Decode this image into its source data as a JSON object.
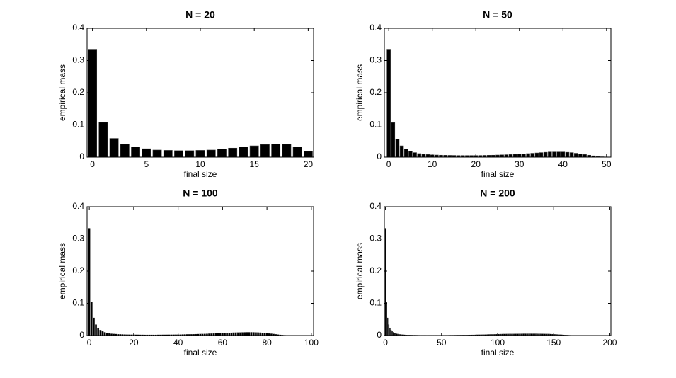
{
  "chart_data": [
    {
      "type": "bar",
      "title": "N = 20",
      "x_label": "final size",
      "y_label": "empirical mass",
      "color": "#000000",
      "categories": [
        0,
        1,
        2,
        3,
        4,
        5,
        6,
        7,
        8,
        9,
        10,
        11,
        12,
        13,
        14,
        15,
        16,
        17,
        18,
        19,
        20
      ],
      "values": [
        0.335,
        0.108,
        0.058,
        0.04,
        0.032,
        0.026,
        0.022,
        0.021,
        0.02,
        0.02,
        0.021,
        0.022,
        0.025,
        0.028,
        0.032,
        0.035,
        0.039,
        0.041,
        0.04,
        0.032,
        0.018
      ],
      "xlim": [
        -0.5,
        20.5
      ],
      "xticks": [
        0,
        5,
        10,
        15,
        20
      ],
      "ylim": [
        0,
        0.4
      ],
      "yticks": [
        0,
        0.1,
        0.2,
        0.3,
        0.4
      ]
    },
    {
      "type": "bar",
      "title": "N = 50",
      "x_label": "final size",
      "y_label": "empirical mass",
      "color": "#000000",
      "categories": [
        0,
        1,
        2,
        3,
        4,
        5,
        6,
        7,
        8,
        9,
        10,
        11,
        12,
        13,
        14,
        15,
        16,
        17,
        18,
        19,
        20,
        21,
        22,
        23,
        24,
        25,
        26,
        27,
        28,
        29,
        30,
        31,
        32,
        33,
        34,
        35,
        36,
        37,
        38,
        39,
        40,
        41,
        42,
        43,
        44,
        45,
        46,
        47,
        48,
        49,
        50
      ],
      "values": [
        0.335,
        0.107,
        0.056,
        0.035,
        0.025,
        0.018,
        0.014,
        0.011,
        0.009,
        0.008,
        0.007,
        0.0065,
        0.006,
        0.0058,
        0.0055,
        0.0053,
        0.005,
        0.005,
        0.005,
        0.005,
        0.005,
        0.0052,
        0.0055,
        0.0058,
        0.006,
        0.0065,
        0.007,
        0.0075,
        0.008,
        0.009,
        0.0095,
        0.01,
        0.011,
        0.012,
        0.013,
        0.014,
        0.015,
        0.016,
        0.016,
        0.016,
        0.016,
        0.015,
        0.014,
        0.012,
        0.01,
        0.008,
        0.006,
        0.004,
        0.002,
        0.001,
        0.0005
      ],
      "xlim": [
        -1,
        51
      ],
      "xticks": [
        0,
        10,
        20,
        30,
        40,
        50
      ],
      "ylim": [
        0,
        0.4
      ],
      "yticks": [
        0,
        0.1,
        0.2,
        0.3,
        0.4
      ]
    },
    {
      "type": "bar",
      "title": "N = 100",
      "x_label": "final size",
      "y_label": "empirical mass",
      "color": "#000000",
      "categories": [
        0,
        1,
        2,
        3,
        4,
        5,
        6,
        7,
        8,
        9,
        10,
        11,
        12,
        13,
        14,
        15,
        16,
        17,
        18,
        19,
        20,
        21,
        22,
        23,
        24,
        25,
        26,
        27,
        28,
        29,
        30,
        31,
        32,
        33,
        34,
        35,
        36,
        37,
        38,
        39,
        40,
        41,
        42,
        43,
        44,
        45,
        46,
        47,
        48,
        49,
        50,
        51,
        52,
        53,
        54,
        55,
        56,
        57,
        58,
        59,
        60,
        61,
        62,
        63,
        64,
        65,
        66,
        67,
        68,
        69,
        70,
        71,
        72,
        73,
        74,
        75,
        76,
        77,
        78,
        79,
        80,
        81,
        82,
        83,
        84,
        85,
        86,
        87,
        88,
        89,
        90,
        91,
        92,
        93,
        94,
        95,
        96,
        97,
        98,
        99,
        100
      ],
      "values": [
        0.333,
        0.105,
        0.055,
        0.034,
        0.024,
        0.017,
        0.013,
        0.01,
        0.008,
        0.0065,
        0.0055,
        0.005,
        0.0045,
        0.004,
        0.0037,
        0.0034,
        0.0032,
        0.003,
        0.0028,
        0.0027,
        0.0026,
        0.0025,
        0.0024,
        0.0023,
        0.0023,
        0.0022,
        0.0022,
        0.0022,
        0.0022,
        0.0022,
        0.0022,
        0.0023,
        0.0023,
        0.0024,
        0.0024,
        0.0025,
        0.0026,
        0.0027,
        0.0028,
        0.0029,
        0.003,
        0.0031,
        0.0033,
        0.0034,
        0.0036,
        0.0037,
        0.0039,
        0.0041,
        0.0043,
        0.0045,
        0.0047,
        0.0049,
        0.0052,
        0.0054,
        0.0057,
        0.006,
        0.0063,
        0.0066,
        0.0069,
        0.0072,
        0.0075,
        0.0078,
        0.0081,
        0.0084,
        0.0087,
        0.009,
        0.0092,
        0.0094,
        0.0096,
        0.0098,
        0.0099,
        0.01,
        0.01,
        0.01,
        0.0099,
        0.0097,
        0.0094,
        0.009,
        0.0085,
        0.0079,
        0.0072,
        0.0064,
        0.0056,
        0.0047,
        0.0038,
        0.003,
        0.0022,
        0.0016,
        0.0011,
        0.0007,
        0.0004,
        0.0002,
        0.0001,
        0.0001,
        0,
        0,
        0,
        0,
        0,
        0,
        0
      ],
      "xlim": [
        -1,
        101
      ],
      "xticks": [
        0,
        20,
        40,
        60,
        80,
        100
      ],
      "ylim": [
        0,
        0.4
      ],
      "yticks": [
        0,
        0.1,
        0.2,
        0.3,
        0.4
      ]
    },
    {
      "type": "bar",
      "title": "N = 200",
      "x_label": "final size",
      "y_label": "empirical mass",
      "color": "#000000",
      "categories": [
        0,
        1,
        2,
        3,
        4,
        5,
        6,
        7,
        8,
        9,
        10,
        11,
        12,
        13,
        14,
        15,
        16,
        17,
        18,
        19,
        20,
        21,
        22,
        23,
        24,
        25,
        26,
        27,
        28,
        29,
        30,
        31,
        32,
        33,
        34,
        35,
        36,
        37,
        38,
        39,
        40,
        41,
        42,
        43,
        44,
        45,
        46,
        47,
        48,
        49,
        50,
        51,
        52,
        53,
        54,
        55,
        56,
        57,
        58,
        59,
        60,
        61,
        62,
        63,
        64,
        65,
        66,
        67,
        68,
        69,
        70,
        71,
        72,
        73,
        74,
        75,
        76,
        77,
        78,
        79,
        80,
        81,
        82,
        83,
        84,
        85,
        86,
        87,
        88,
        89,
        90,
        91,
        92,
        93,
        94,
        95,
        96,
        97,
        98,
        99,
        100,
        101,
        102,
        103,
        104,
        105,
        106,
        107,
        108,
        109,
        110,
        111,
        112,
        113,
        114,
        115,
        116,
        117,
        118,
        119,
        120,
        121,
        122,
        123,
        124,
        125,
        126,
        127,
        128,
        129,
        130,
        131,
        132,
        133,
        134,
        135,
        136,
        137,
        138,
        139,
        140,
        141,
        142,
        143,
        144,
        145,
        146,
        147,
        148,
        149,
        150,
        151,
        152,
        153,
        154,
        155,
        156,
        157,
        158,
        159,
        160,
        161,
        162,
        163,
        164,
        165,
        166,
        167,
        168,
        169,
        170,
        171,
        172,
        173,
        174,
        175,
        176,
        177,
        178,
        179,
        180,
        181,
        182,
        183,
        184,
        185,
        186,
        187,
        188,
        189,
        190,
        191,
        192,
        193,
        194,
        195,
        196,
        197,
        198,
        199,
        200
      ],
      "values": [
        0.333,
        0.105,
        0.055,
        0.034,
        0.024,
        0.017,
        0.013,
        0.01,
        0.008,
        0.0065,
        0.0055,
        0.0047,
        0.0041,
        0.0036,
        0.0032,
        0.0029,
        0.0026,
        0.0023,
        0.0021,
        0.0019,
        0.0018,
        0.0017,
        0.0016,
        0.0015,
        0.0014,
        0.0013,
        0.0013,
        0.0012,
        0.0012,
        0.0011,
        0.0011,
        0.0011,
        0.001,
        0.001,
        0.001,
        0.001,
        0.001,
        0.001,
        0.001,
        0.001,
        0.001,
        0.001,
        0.001,
        0.001,
        0.001,
        0.001,
        0.001,
        0.001,
        0.001,
        0.001,
        0.001,
        0.001,
        0.001,
        0.001,
        0.0011,
        0.0011,
        0.0011,
        0.0011,
        0.0012,
        0.0012,
        0.0012,
        0.0013,
        0.0013,
        0.0013,
        0.0014,
        0.0014,
        0.0015,
        0.0015,
        0.0016,
        0.0016,
        0.0017,
        0.0017,
        0.0018,
        0.0018,
        0.0019,
        0.002,
        0.002,
        0.0021,
        0.0022,
        0.0022,
        0.0023,
        0.0024,
        0.0025,
        0.0026,
        0.0026,
        0.0027,
        0.0028,
        0.0029,
        0.003,
        0.0031,
        0.0032,
        0.0033,
        0.0034,
        0.0035,
        0.0036,
        0.0037,
        0.0038,
        0.0039,
        0.004,
        0.0041,
        0.0042,
        0.0043,
        0.0044,
        0.0045,
        0.0046,
        0.0046,
        0.0047,
        0.0048,
        0.0049,
        0.0049,
        0.005,
        0.005,
        0.0051,
        0.0051,
        0.0052,
        0.0052,
        0.0053,
        0.0053,
        0.0053,
        0.0054,
        0.0054,
        0.0054,
        0.0054,
        0.0055,
        0.0055,
        0.0055,
        0.0055,
        0.0055,
        0.0055,
        0.0055,
        0.0055,
        0.0055,
        0.0055,
        0.0055,
        0.0055,
        0.0055,
        0.0054,
        0.0054,
        0.0054,
        0.0053,
        0.0053,
        0.0052,
        0.0051,
        0.005,
        0.0049,
        0.0048,
        0.0047,
        0.0045,
        0.0044,
        0.0042,
        0.004,
        0.0038,
        0.0036,
        0.0034,
        0.0032,
        0.003,
        0.0028,
        0.0025,
        0.0023,
        0.0021,
        0.0019,
        0.0017,
        0.0015,
        0.0013,
        0.0011,
        0.001,
        0.0008,
        0.0007,
        0.0006,
        0.0005,
        0.0004,
        0.0003,
        0.0002,
        0.0002,
        0.0001,
        0.0001,
        0.0001,
        0,
        0,
        0,
        0,
        0,
        0,
        0,
        0,
        0,
        0,
        0,
        0,
        0,
        0,
        0,
        0,
        0,
        0,
        0,
        0,
        0,
        0,
        0,
        0
      ],
      "xlim": [
        -1,
        201
      ],
      "xticks": [
        0,
        50,
        100,
        150,
        200
      ],
      "ylim": [
        0,
        0.4
      ],
      "yticks": [
        0,
        0.1,
        0.2,
        0.3,
        0.4
      ]
    }
  ]
}
